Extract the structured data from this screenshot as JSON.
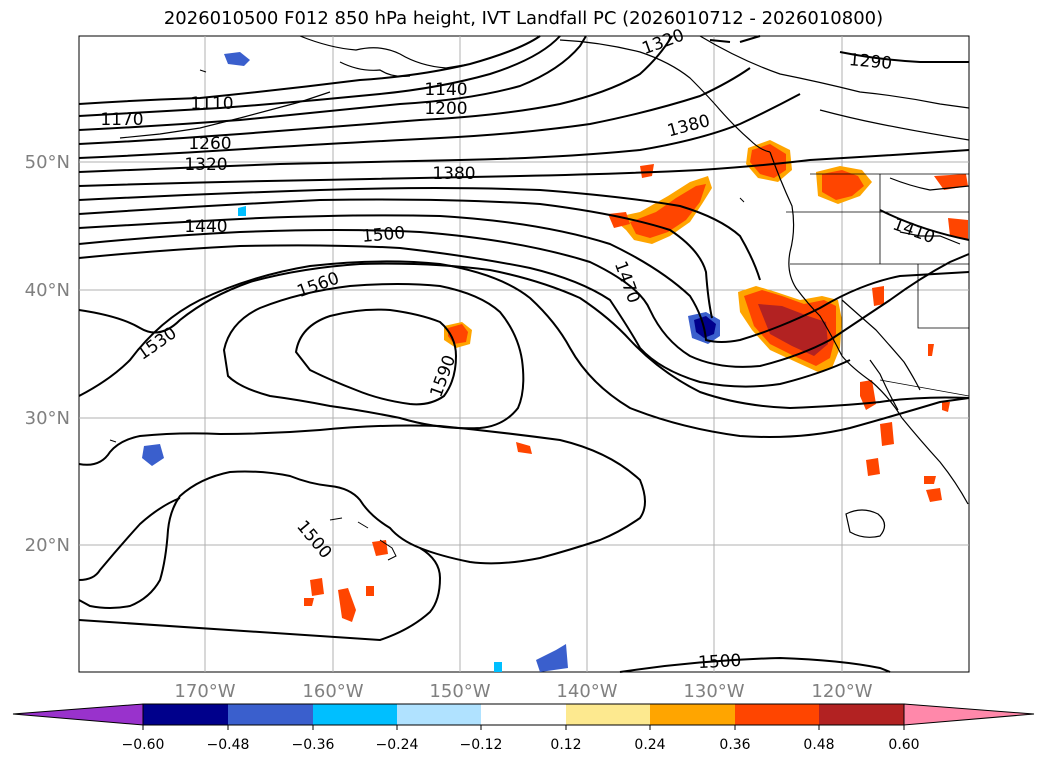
{
  "title": "2026010500 F012 850 hPa height, IVT Landfall PC (2026010712 - 2026010800)",
  "lat_labels": [
    "50°N",
    "40°N",
    "30°N",
    "20°N"
  ],
  "lon_labels": [
    "170°W",
    "160°W",
    "150°W",
    "140°W",
    "130°W",
    "120°W"
  ],
  "contour_labels": [
    "1110",
    "1170",
    "1140",
    "1200",
    "1260",
    "1320",
    "1380",
    "1380",
    "1290",
    "1440",
    "1500",
    "1410",
    "1470",
    "1560",
    "1530",
    "1590",
    "1500",
    "1500",
    "1320"
  ],
  "colorbar": {
    "ticks": [
      "−0.60",
      "−0.48",
      "−0.36",
      "−0.24",
      "−0.12",
      "0.12",
      "0.24",
      "0.36",
      "0.48",
      "0.60"
    ],
    "colors": [
      "#9932cc",
      "#00008b",
      "#3a5fcd",
      "#00bfff",
      "#b0e2ff",
      "#ffffff",
      "#fde98f",
      "#ffa500",
      "#ff4500",
      "#b22222",
      "#ff88aa"
    ]
  },
  "colors": {
    "positive_shade": "#ff4500",
    "positive_core": "#b22222",
    "negative_shade": "#3a5fcd",
    "grid": "#b0b0b0"
  }
}
